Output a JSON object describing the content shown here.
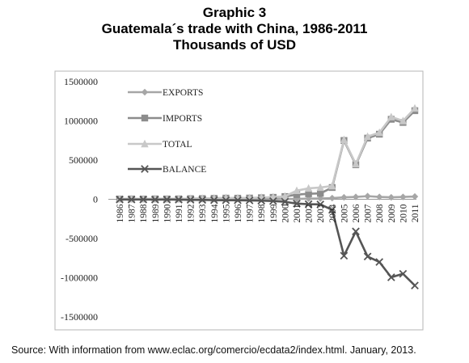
{
  "title": {
    "line1": "Graphic 3",
    "line2": "Guatemala´s trade with China, 1986-2011",
    "line3": "Thousands of USD"
  },
  "source": "Source: With information from www.eclac.org/comercio/ecdata2/index.html. January, 2013.",
  "chart_data": {
    "type": "line",
    "title": "Guatemala´s trade with China, 1986-2011",
    "subtitle": "Thousands of USD",
    "xlabel": "",
    "ylabel": "",
    "ylim": [
      -1500000,
      1500000
    ],
    "yticks": [
      1500000,
      1000000,
      500000,
      0,
      -500000,
      -1000000,
      -1500000
    ],
    "ytick_labels": [
      "1500000",
      "1000000",
      "500000",
      "0",
      "-500000",
      "-1000000",
      "-1500000"
    ],
    "legend_position": "top-left inside",
    "grid": false,
    "x": [
      "1986",
      "1987",
      "1988",
      "1989",
      "1990",
      "1991",
      "1992",
      "1993",
      "1994",
      "1995",
      "1996",
      "1997",
      "1998",
      "1999",
      "2000",
      "2001",
      "2002",
      "2003",
      "2004",
      "2005",
      "2006",
      "2007",
      "2008",
      "2009",
      "2010",
      "2011"
    ],
    "series": [
      {
        "name": "EXPORTS",
        "color": "#a6a6a6",
        "marker": "diamond",
        "values": [
          500,
          600,
          400,
          500,
          300,
          400,
          800,
          1000,
          1500,
          3000,
          2000,
          1500,
          2000,
          2500,
          3000,
          5000,
          8000,
          10000,
          15000,
          25000,
          30000,
          40000,
          30000,
          25000,
          30000,
          35000
        ]
      },
      {
        "name": "IMPORTS",
        "color": "#8c8c8c",
        "marker": "square",
        "values": [
          3000,
          4000,
          3000,
          5000,
          4000,
          5000,
          8000,
          9000,
          12000,
          15000,
          14000,
          16000,
          20000,
          25000,
          35000,
          60000,
          70000,
          75000,
          150000,
          750000,
          440000,
          780000,
          830000,
          1020000,
          980000,
          1130000
        ]
      },
      {
        "name": "TOTAL",
        "color": "#c8c8c8",
        "marker": "triangle",
        "values": [
          3500,
          4600,
          3400,
          5500,
          4300,
          5400,
          8800,
          10000,
          13500,
          18000,
          16000,
          17500,
          22000,
          27500,
          38000,
          110000,
          140000,
          150000,
          170000,
          760000,
          450000,
          800000,
          850000,
          1050000,
          1000000,
          1160000
        ]
      },
      {
        "name": "BALANCE",
        "color": "#555555",
        "marker": "x",
        "values": [
          -2500,
          -3400,
          -2600,
          -4500,
          -3700,
          -4600,
          -7200,
          -8000,
          -10500,
          -12000,
          -12000,
          -14500,
          -18000,
          -22500,
          -32000,
          -55000,
          -62000,
          -65000,
          -135000,
          -720000,
          -410000,
          -730000,
          -800000,
          -995000,
          -950000,
          -1100000
        ]
      }
    ]
  }
}
